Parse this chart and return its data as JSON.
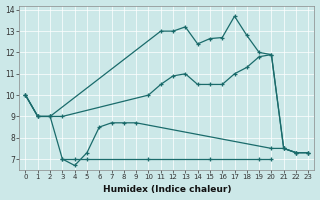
{
  "xlabel": "Humidex (Indice chaleur)",
  "bg_color": "#cce8e8",
  "line_color": "#1a6b6b",
  "xlim": [
    -0.5,
    23.5
  ],
  "ylim": [
    6.5,
    14.2
  ],
  "xticks": [
    0,
    1,
    2,
    3,
    4,
    5,
    6,
    7,
    8,
    9,
    10,
    11,
    12,
    13,
    14,
    15,
    16,
    17,
    18,
    19,
    20,
    21,
    22,
    23
  ],
  "yticks": [
    7,
    8,
    9,
    10,
    11,
    12,
    13,
    14
  ],
  "series": [
    {
      "x": [
        3,
        4,
        5,
        10,
        15,
        19,
        20
      ],
      "y": [
        7.0,
        7.0,
        7.0,
        7.0,
        7.0,
        7.0,
        7.0
      ]
    },
    {
      "x": [
        0,
        1,
        2,
        3,
        4,
        5,
        6,
        7,
        8,
        9,
        20,
        21,
        22,
        23
      ],
      "y": [
        10.0,
        9.0,
        9.0,
        7.0,
        6.7,
        7.3,
        8.5,
        8.7,
        8.7,
        8.7,
        7.5,
        7.5,
        7.3,
        7.3
      ]
    },
    {
      "x": [
        0,
        1,
        2,
        3,
        10,
        11,
        12,
        13,
        14,
        15,
        16,
        17,
        18,
        19,
        20,
        21,
        22,
        23
      ],
      "y": [
        10.0,
        9.0,
        9.0,
        9.0,
        10.0,
        10.5,
        10.9,
        11.0,
        10.5,
        10.5,
        10.5,
        11.0,
        11.3,
        11.8,
        11.9,
        7.5,
        7.3,
        7.3
      ]
    },
    {
      "x": [
        0,
        1,
        2,
        11,
        12,
        13,
        14,
        15,
        16,
        17,
        18,
        19,
        20,
        21,
        22,
        23
      ],
      "y": [
        10.0,
        9.0,
        9.0,
        13.0,
        13.0,
        13.2,
        12.4,
        12.65,
        12.7,
        13.7,
        12.8,
        12.0,
        11.9,
        7.5,
        7.3,
        7.3
      ]
    }
  ]
}
